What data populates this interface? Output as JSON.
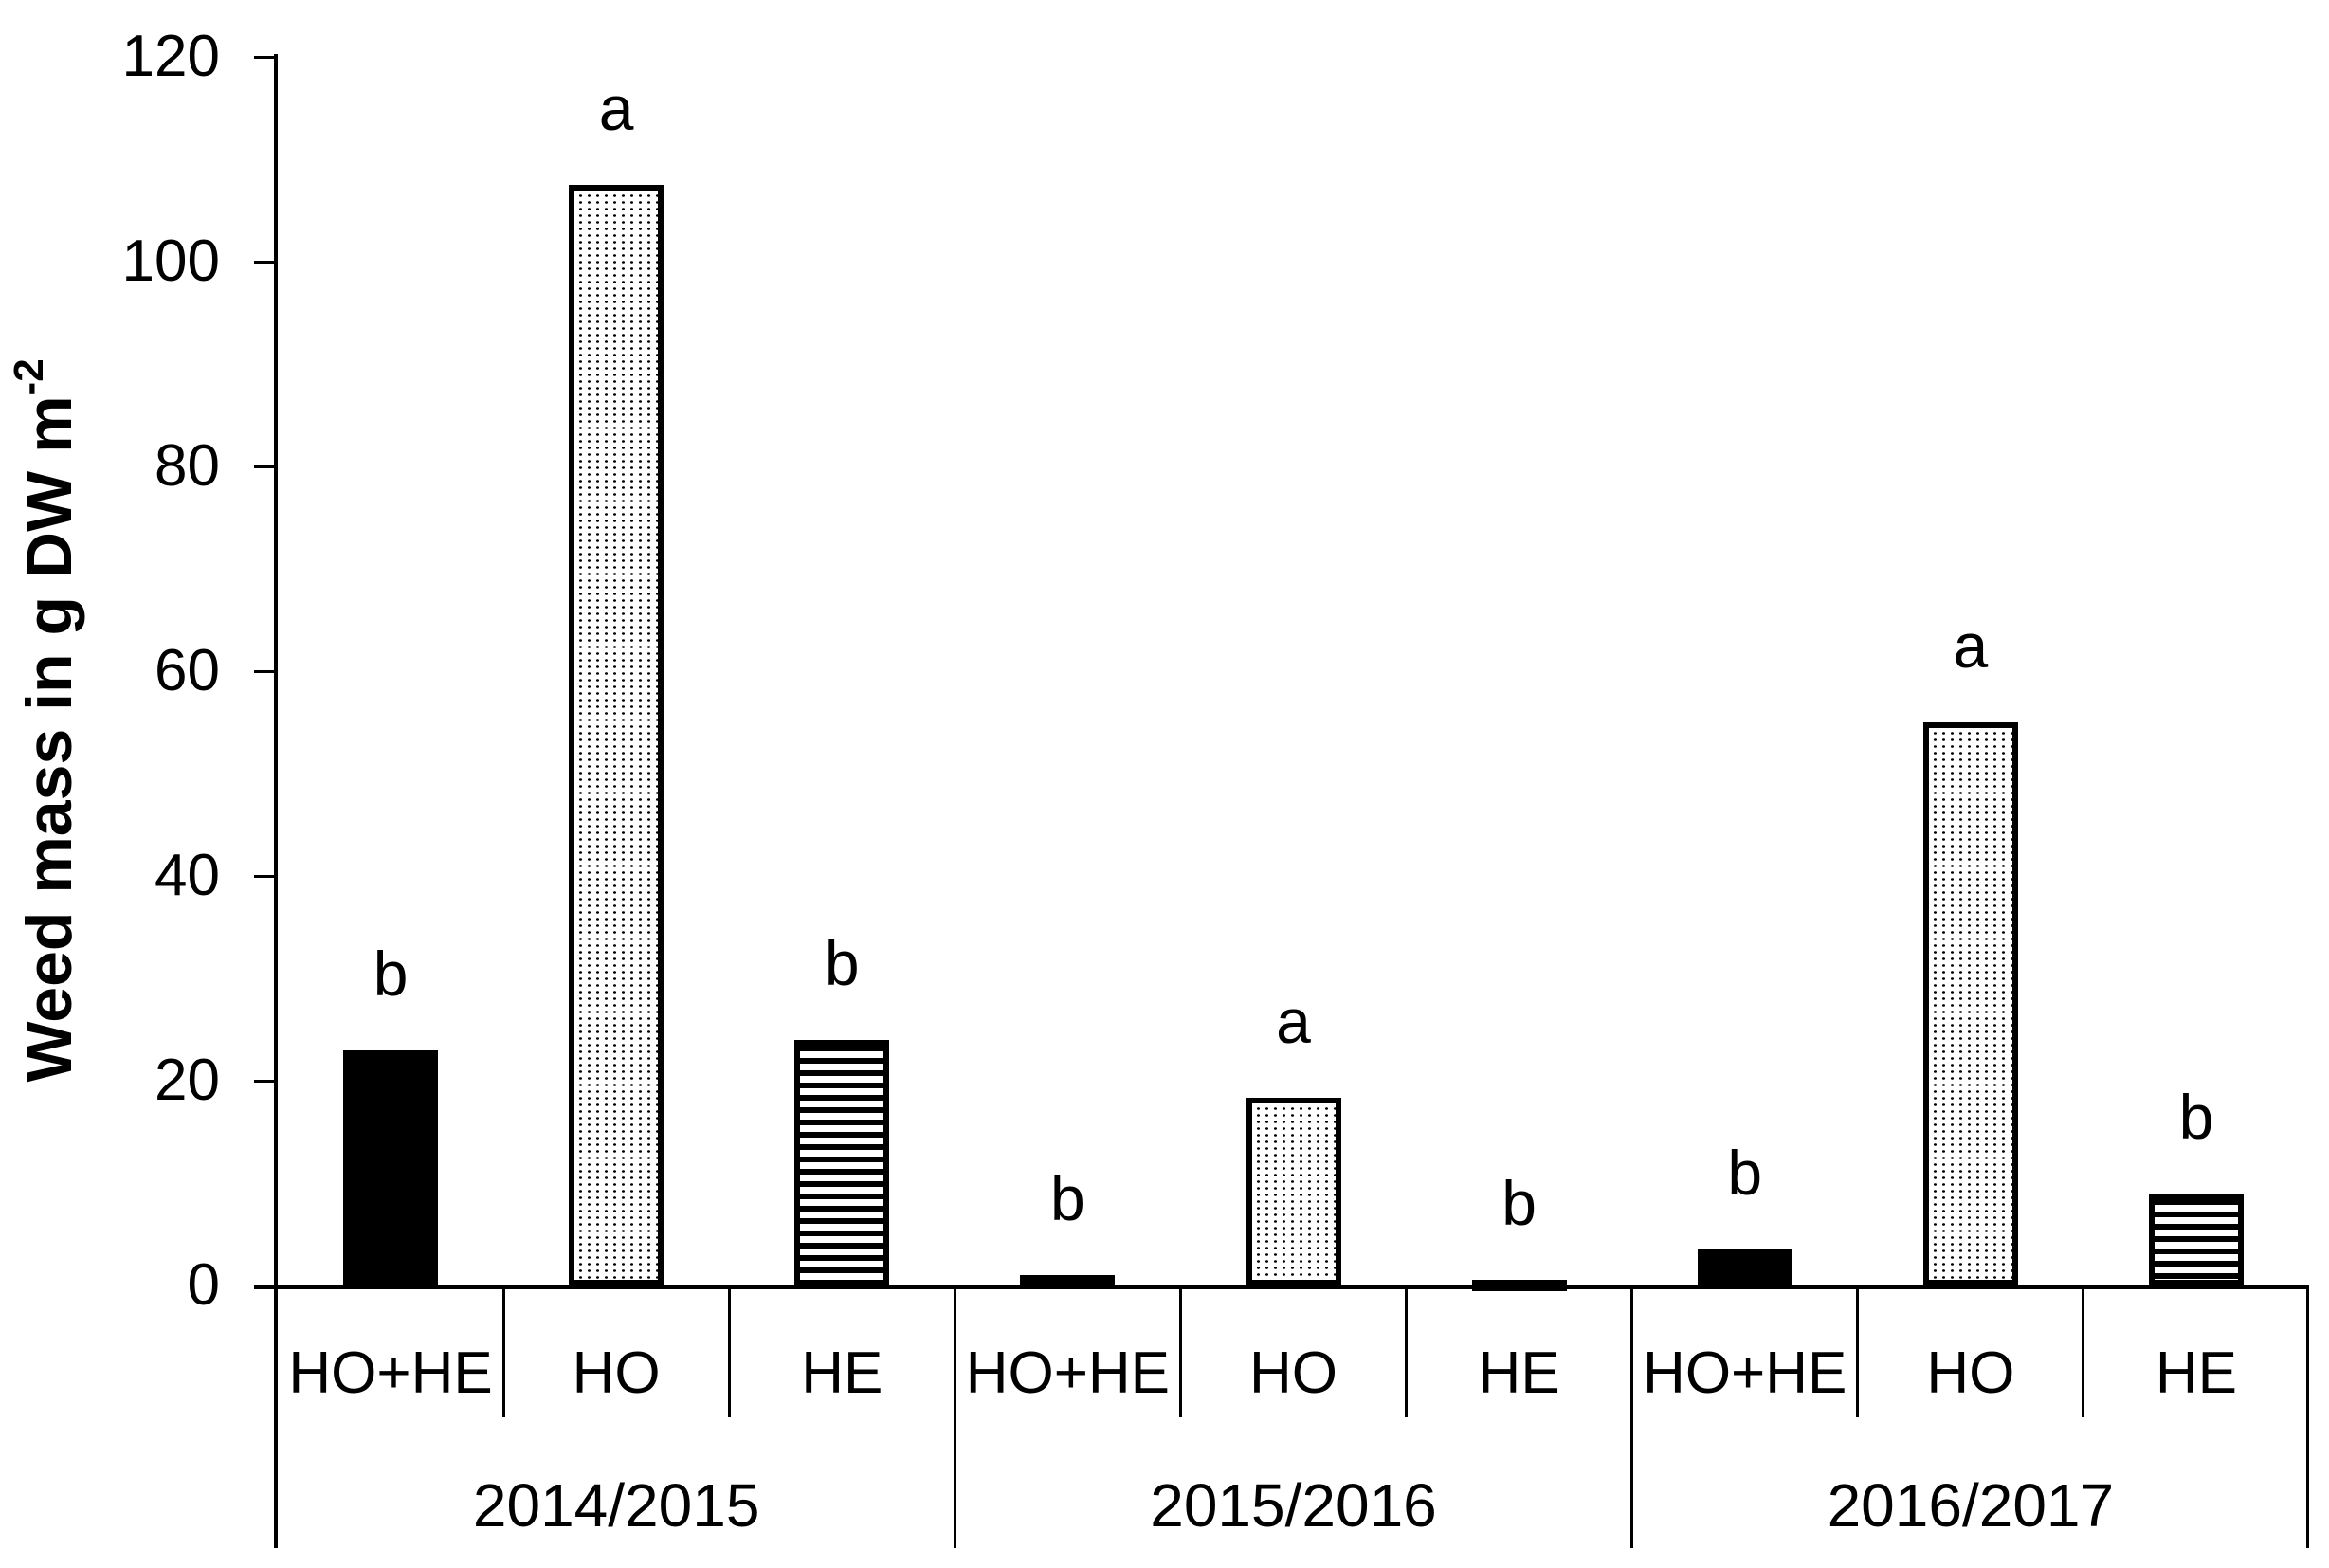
{
  "chart_data": {
    "type": "bar",
    "title": "",
    "ylabel_main": "Weed mass in g DW m",
    "ylabel_superscript": "-2",
    "ylabel_full": "Weed mass in g DW m-2",
    "xlabel": "",
    "ylim": [
      0,
      120
    ],
    "y_ticks": [
      0,
      20,
      40,
      60,
      80,
      100,
      120
    ],
    "y_tick_labels": [
      "0",
      "20",
      "40",
      "60",
      "80",
      "100",
      "120"
    ],
    "grid": false,
    "legend_position": "none",
    "bar_categories": [
      "HO+HE",
      "HO",
      "HE"
    ],
    "group_categories": [
      "2014/2015",
      "2015/2016",
      "2016/2017"
    ],
    "pattern_by_treatment": {
      "HO+HE": "solid",
      "HO": "dotted",
      "HE": "striped"
    },
    "groups": [
      {
        "year": "2014/2015",
        "bars": [
          {
            "label": "HO+HE",
            "value": 23,
            "letter": "b",
            "pattern": "solid"
          },
          {
            "label": "HO",
            "value": 107.5,
            "letter": "a",
            "pattern": "dotted"
          },
          {
            "label": "HE",
            "value": 24,
            "letter": "b",
            "pattern": "striped"
          }
        ]
      },
      {
        "year": "2015/2016",
        "bars": [
          {
            "label": "HO+HE",
            "value": 1,
            "letter": "b",
            "pattern": "solid"
          },
          {
            "label": "HO",
            "value": 18.3,
            "letter": "a",
            "pattern": "dotted"
          },
          {
            "label": "HE",
            "value": 0.6,
            "letter": "b",
            "pattern": "striped"
          }
        ]
      },
      {
        "year": "2016/2017",
        "bars": [
          {
            "label": "HO+HE",
            "value": 3.5,
            "letter": "b",
            "pattern": "solid"
          },
          {
            "label": "HO",
            "value": 55,
            "letter": "a",
            "pattern": "dotted"
          },
          {
            "label": "HE",
            "value": 9,
            "letter": "b",
            "pattern": "striped"
          }
        ]
      }
    ],
    "colors": {
      "bar_solid": "#000000",
      "pattern_foreground": "#000000",
      "pattern_background": "#ffffff",
      "axis": "#000000",
      "text": "#000000",
      "background": "#ffffff"
    }
  }
}
